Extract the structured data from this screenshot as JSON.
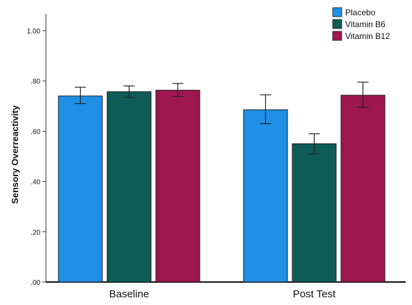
{
  "chart_data": {
    "type": "bar",
    "title": "",
    "xlabel": "",
    "ylabel": "Sensory Overreactivity",
    "categories": [
      "Baseline",
      "Post Test"
    ],
    "ylim": [
      0,
      1.0
    ],
    "yticks": [
      0,
      0.2,
      0.4,
      0.6,
      0.8,
      1.0
    ],
    "ytick_labels": [
      ".00",
      ".20",
      ".40",
      ".60",
      ".80",
      "1.00"
    ],
    "grid": false,
    "legend_position": "top-right",
    "error_bars": true,
    "series": [
      {
        "name": "Placebo",
        "color": "#1e90e6",
        "values": [
          0.74,
          0.685
        ],
        "error_low": [
          0.71,
          0.63
        ],
        "error_high": [
          0.775,
          0.745
        ]
      },
      {
        "name": "Vitamin B6",
        "color": "#0d5c57",
        "values": [
          0.757,
          0.55
        ],
        "error_low": [
          0.735,
          0.51
        ],
        "error_high": [
          0.78,
          0.59
        ]
      },
      {
        "name": "Vitamin B12",
        "color": "#9e1650",
        "values": [
          0.763,
          0.743
        ],
        "error_low": [
          0.738,
          0.695
        ],
        "error_high": [
          0.79,
          0.795
        ]
      }
    ]
  }
}
